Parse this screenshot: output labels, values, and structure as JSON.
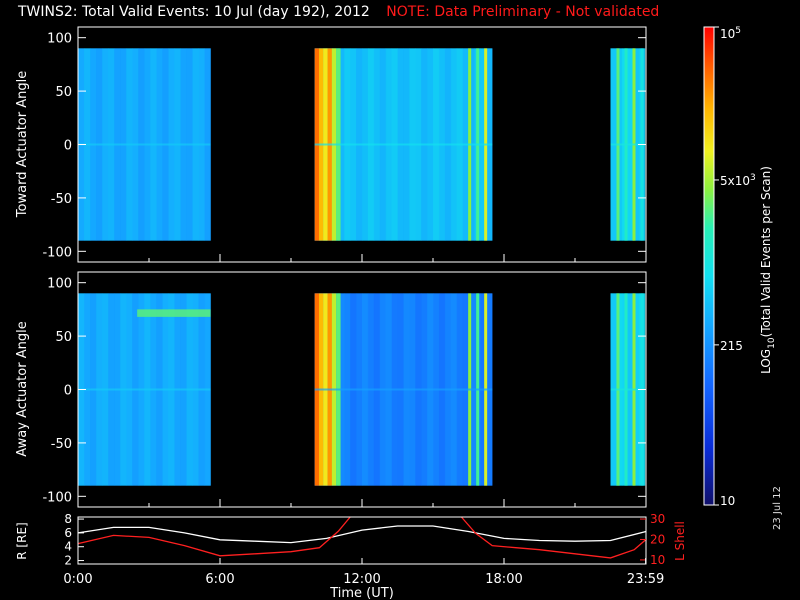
{
  "header": {
    "title": "TWINS2: Total Valid Events: 10 Jul (day 192), 2012",
    "note": "NOTE: Data Preliminary - Not validated"
  },
  "stamp": "23 Jul 12",
  "colors": {
    "background": "#000000",
    "axis": "#ffffff",
    "note": "#ff1a1a",
    "lshell": "#ff2020",
    "radius": "#ffffff"
  },
  "chart_data": [
    {
      "type": "heatmap",
      "name": "toward",
      "ylabel": "Toward Actuator Angle",
      "ylim": [
        -110,
        110
      ],
      "yticks": [
        100,
        50,
        0,
        -50,
        -100
      ],
      "xlim": [
        0,
        24
      ],
      "data_extent": [
        -90,
        90
      ],
      "blocks": [
        {
          "t0": 0.0,
          "t1": 5.6,
          "base": 0.38
        },
        {
          "t0": 10.0,
          "t1": 17.5,
          "base": 0.42
        },
        {
          "t0": 22.5,
          "t1": 23.95,
          "base": 0.45
        }
      ]
    },
    {
      "type": "heatmap",
      "name": "away",
      "ylabel": "Away Actuator Angle",
      "ylim": [
        -110,
        110
      ],
      "yticks": [
        100,
        50,
        0,
        -50,
        -100
      ],
      "xlim": [
        0,
        24
      ],
      "data_extent": [
        -90,
        90
      ],
      "blocks": [
        {
          "t0": 0.0,
          "t1": 5.6,
          "base": 0.38
        },
        {
          "t0": 10.0,
          "t1": 17.5,
          "base": 0.3
        },
        {
          "t0": 22.5,
          "t1": 23.95,
          "base": 0.45
        }
      ]
    },
    {
      "type": "line",
      "name": "orbit",
      "xlabel": "Time (UT)",
      "xticks": [
        "0:00",
        "6:00",
        "12:00",
        "18:00",
        "23:59"
      ],
      "xtick_hours": [
        0,
        6,
        12,
        18,
        23.983
      ],
      "left_label": "R [RE]",
      "left_ticks": [
        8,
        6,
        4,
        2
      ],
      "left_lim": [
        1.5,
        8.3
      ],
      "right_label": "L Shell",
      "right_ticks": [
        30,
        20,
        10
      ],
      "right_lim": [
        8,
        31
      ],
      "series": [
        {
          "name": "R",
          "axis": "left",
          "x": [
            0,
            1.5,
            3,
            4.5,
            6,
            7.5,
            9,
            10.5,
            12,
            13.5,
            15,
            16.5,
            18,
            19.5,
            21,
            22.5,
            24
          ],
          "y": [
            6.0,
            6.8,
            6.8,
            6.0,
            5.0,
            4.8,
            4.6,
            5.2,
            6.4,
            7.0,
            7.0,
            6.2,
            5.2,
            4.9,
            4.8,
            4.9,
            6.2
          ]
        },
        {
          "name": "L Shell",
          "axis": "right",
          "x": [
            0,
            1.5,
            3,
            4.5,
            6,
            7.5,
            9,
            10.2,
            11,
            11.5
          ],
          "y": [
            18,
            22,
            21,
            17,
            12,
            13,
            14,
            16,
            24,
            31
          ]
        },
        {
          "name": "L Shell",
          "axis": "right",
          "x": [
            16.2,
            16.8,
            17.5,
            18.5,
            19.5,
            21,
            22.5,
            23.5,
            24
          ],
          "y": [
            31,
            23,
            17,
            16,
            15,
            13,
            11,
            15,
            20
          ]
        }
      ]
    }
  ],
  "colorbar": {
    "label_prefix": "LOG",
    "label_sub": "10",
    "label_suffix": "(Total Valid Events per Scan)",
    "ticks": [
      {
        "text": "10",
        "frac": 0.0
      },
      {
        "text": "215",
        "frac": 0.335
      },
      {
        "text": "5x10",
        "sup": "3",
        "frac": 0.68
      },
      {
        "text": "10",
        "sup": "5",
        "frac": 1.0
      }
    ]
  }
}
